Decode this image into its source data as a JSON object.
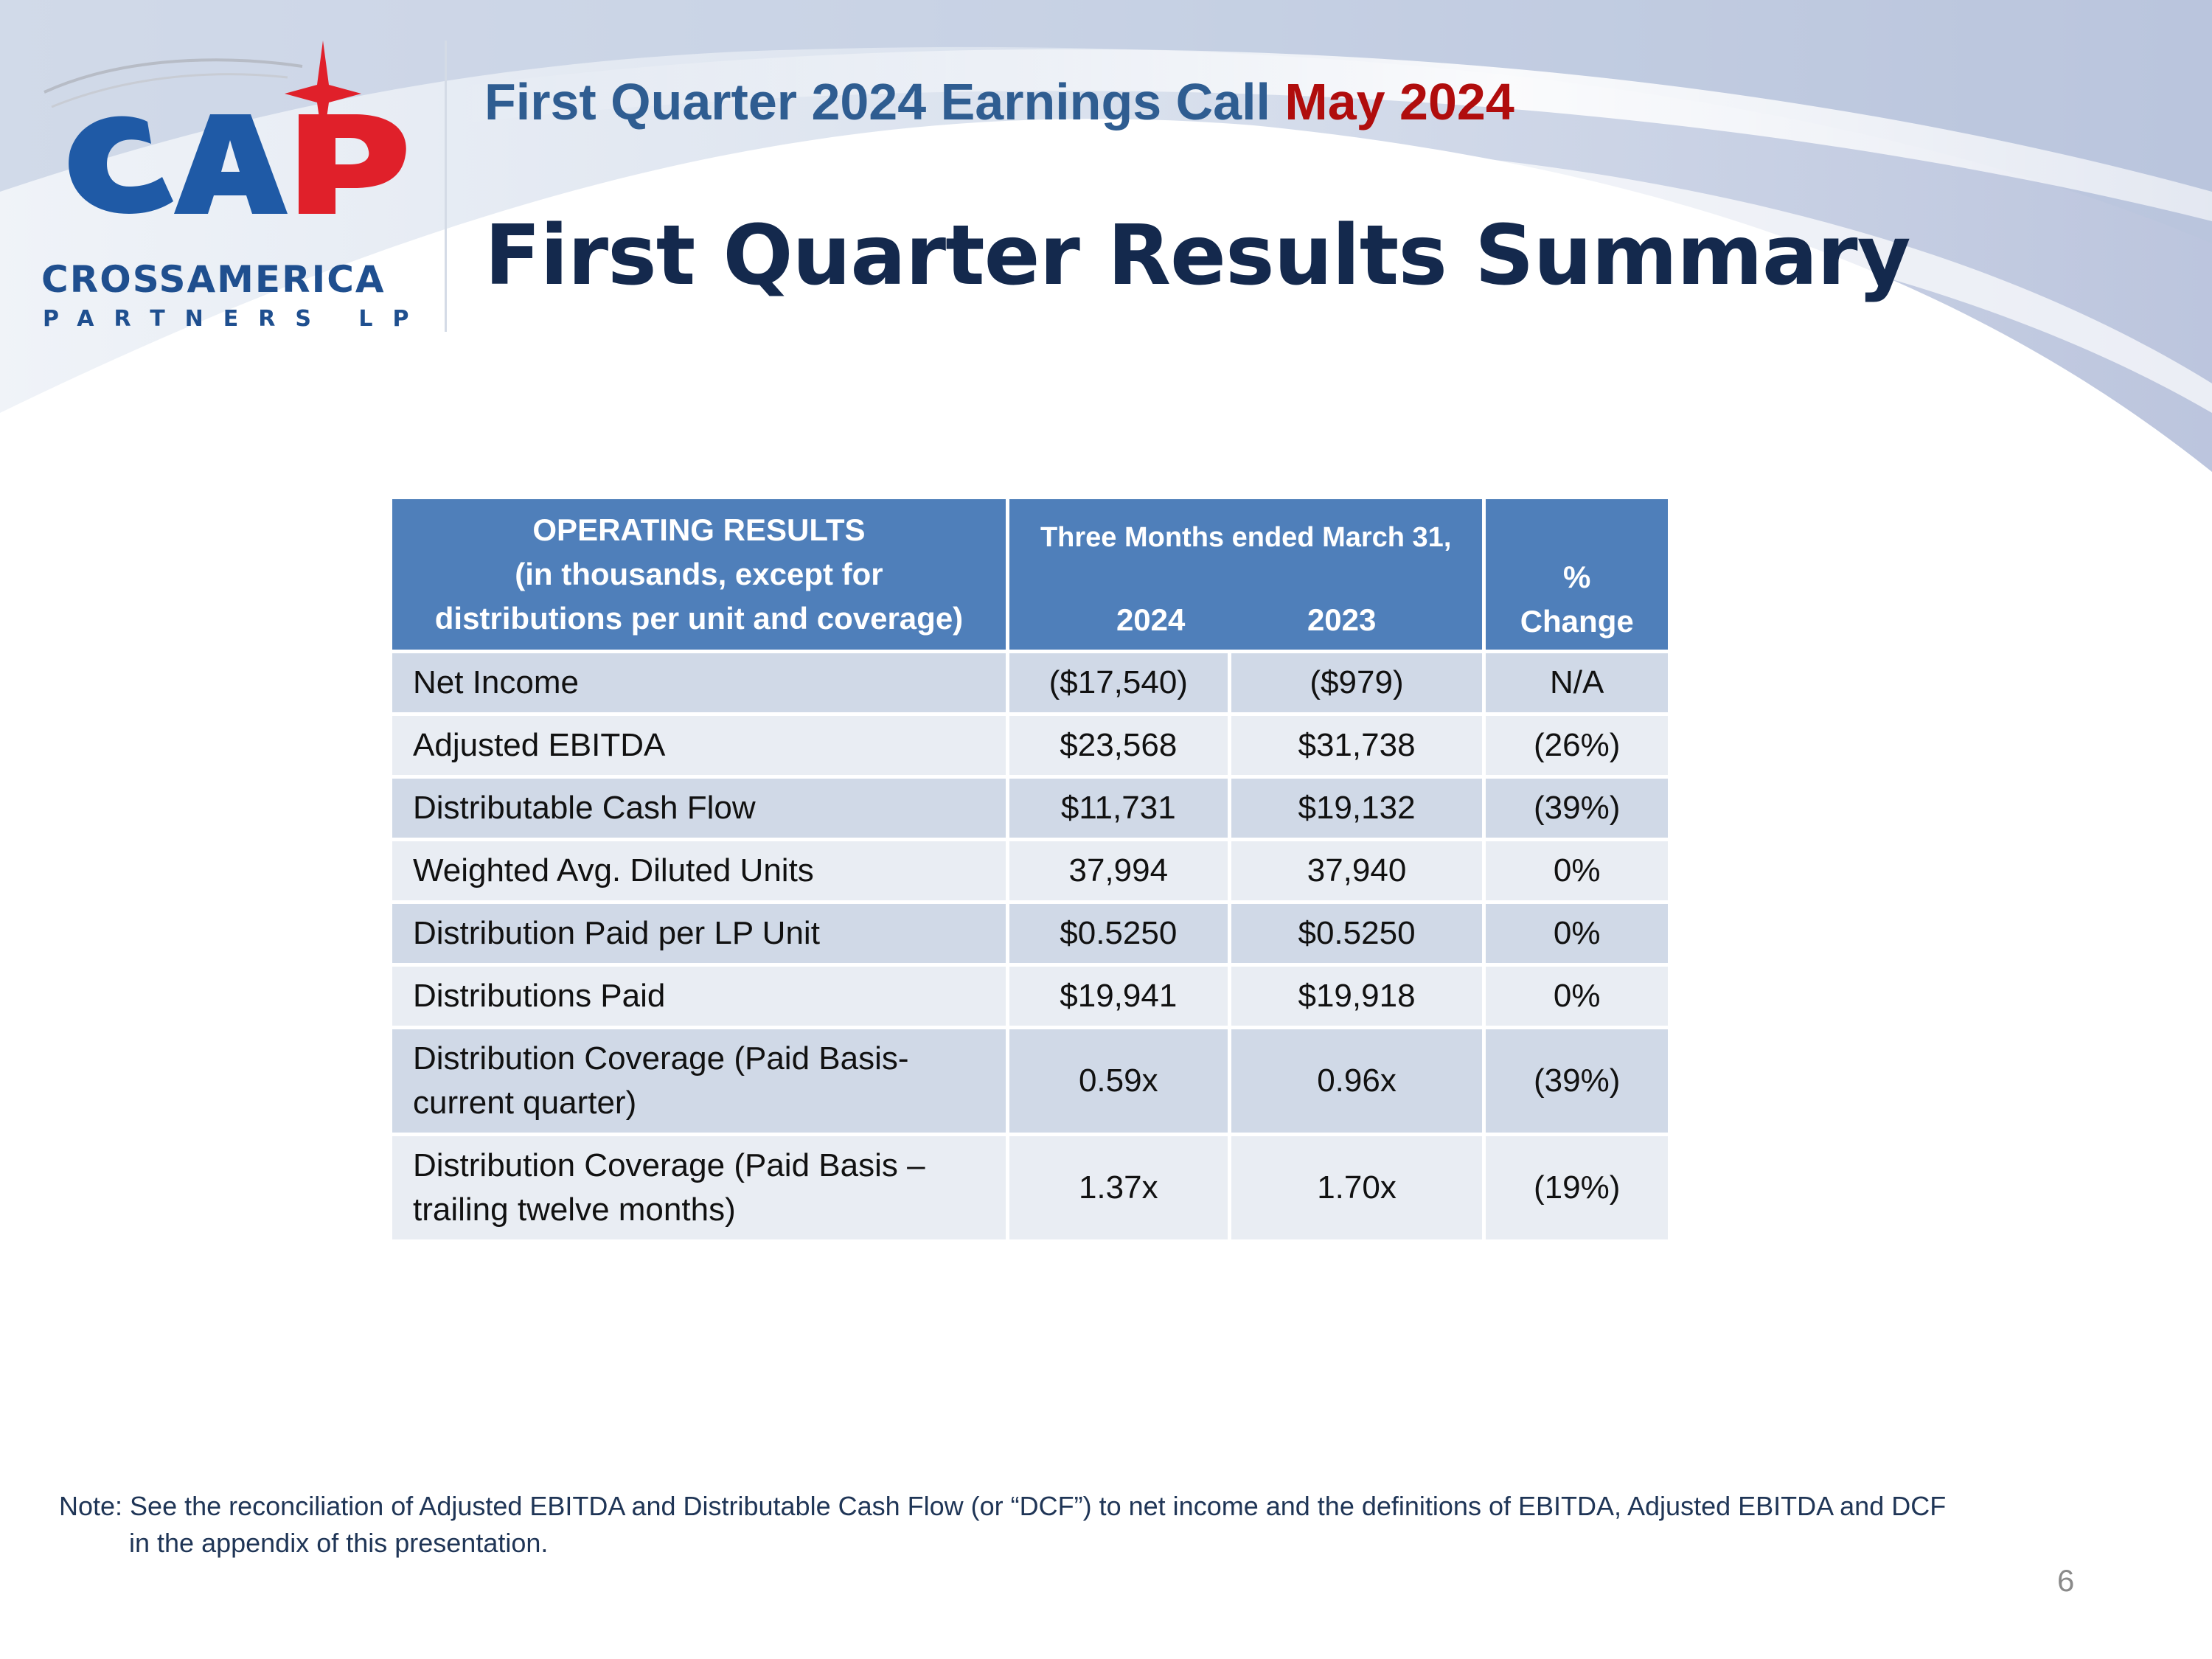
{
  "header": {
    "call_text": "First Quarter 2024 Earnings Call",
    "call_date": "May 2024",
    "title": "First Quarter Results Summary"
  },
  "logo": {
    "mark": "CAP",
    "name": "CROSSAMERICA",
    "sub": "PARTNERS LP",
    "colors": {
      "blue": "#1f5aa6",
      "red": "#e0202a"
    }
  },
  "table": {
    "header": {
      "label_line1": "OPERATING RESULTS",
      "label_line2": "(in thousands, except for",
      "label_line3": "distributions per unit and coverage)",
      "period": "Three Months ended March 31,",
      "year1": "2024",
      "year2": "2023",
      "pct_line1": "%",
      "pct_line2": "Change"
    },
    "rows": [
      {
        "label": "Net Income",
        "y2024": "($17,540)",
        "y2023": "($979)",
        "change": "N/A"
      },
      {
        "label": "Adjusted EBITDA",
        "y2024": "$23,568",
        "y2023": "$31,738",
        "change": "(26%)"
      },
      {
        "label": "Distributable Cash Flow",
        "y2024": "$11,731",
        "y2023": "$19,132",
        "change": "(39%)"
      },
      {
        "label": "Weighted Avg. Diluted Units",
        "y2024": "37,994",
        "y2023": "37,940",
        "change": "0%"
      },
      {
        "label": "Distribution Paid per LP Unit",
        "y2024": "$0.5250",
        "y2023": "$0.5250",
        "change": "0%"
      },
      {
        "label": "Distributions Paid",
        "y2024": "$19,941",
        "y2023": "$19,918",
        "change": "0%"
      },
      {
        "label_line1": "Distribution Coverage (Paid Basis-",
        "label_line2": "current quarter)",
        "y2024": "0.59x",
        "y2023": "0.96x",
        "change": "(39%)"
      },
      {
        "label_line1": "Distribution Coverage (Paid Basis –",
        "label_line2": "trailing twelve months)",
        "y2024": "1.37x",
        "y2023": "1.70x",
        "change": "(19%)"
      }
    ],
    "colors": {
      "header": "#4f7fba",
      "row_dark": "#d0d9e7",
      "row_light": "#e9edf3"
    }
  },
  "footer": {
    "note_line1": "Note: See the reconciliation of Adjusted EBITDA and Distributable Cash Flow (or “DCF”) to net income and the definitions of EBITDA, Adjusted EBITDA and DCF",
    "note_line2": "in the appendix of this presentation.",
    "page_number": "6"
  }
}
